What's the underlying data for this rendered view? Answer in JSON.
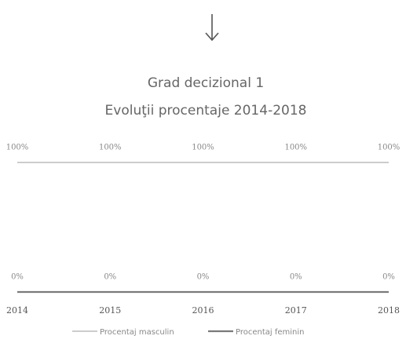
{
  "chart_data": {
    "type": "line",
    "title": "Grad decizional 1",
    "subtitle": "Evoluţii procentaje 2014-2018",
    "categories": [
      "2014",
      "2015",
      "2016",
      "2017",
      "2018"
    ],
    "series": [
      {
        "name": "Procentaj masculin",
        "color": "#c4c4c4",
        "values": [
          100,
          100,
          100,
          100,
          100
        ],
        "value_labels": [
          "100%",
          "100%",
          "100%",
          "100%",
          "100%"
        ]
      },
      {
        "name": "Procentaj feminin",
        "color": "#7a7a7a",
        "values": [
          0,
          0,
          0,
          0,
          0
        ],
        "value_labels": [
          "0%",
          "0%",
          "0%",
          "0%",
          "0%"
        ]
      }
    ]
  }
}
